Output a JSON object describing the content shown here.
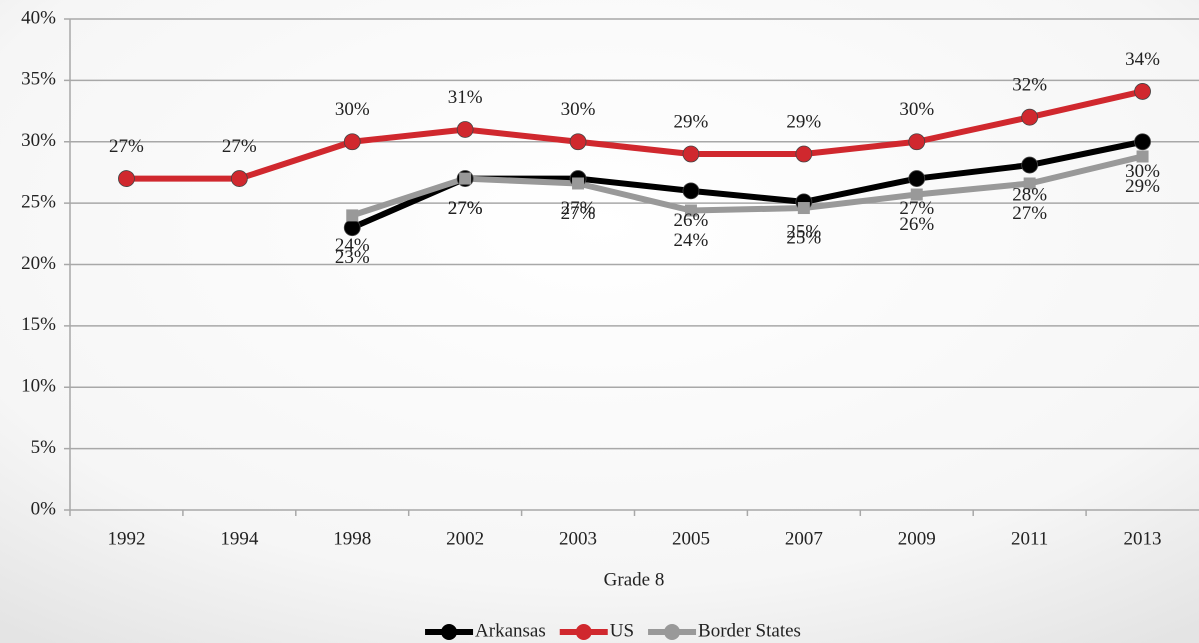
{
  "chart_data": {
    "type": "line",
    "categories": [
      "1992",
      "1994",
      "1998",
      "2002",
      "2003",
      "2005",
      "2007",
      "2009",
      "2011",
      "2013"
    ],
    "xlabel": "Grade 8",
    "ylim": [
      0,
      40
    ],
    "yticks": [
      {
        "value": 0,
        "label": "0%"
      },
      {
        "value": 5,
        "label": "5%"
      },
      {
        "value": 10,
        "label": "10%"
      },
      {
        "value": 15,
        "label": "15%"
      },
      {
        "value": 20,
        "label": "20%"
      },
      {
        "value": 25,
        "label": "25%"
      },
      {
        "value": 30,
        "label": "30%"
      },
      {
        "value": 35,
        "label": "35%"
      },
      {
        "value": 40,
        "label": "40%"
      }
    ],
    "grid": true,
    "legend": "bottom",
    "series": [
      {
        "name": "Arkansas",
        "color": "#000000",
        "marker": "circle",
        "values": [
          null,
          null,
          23,
          27,
          27,
          26,
          25.1,
          27,
          28.1,
          30
        ],
        "value_labels": [
          null,
          null,
          "23%",
          "27%",
          "27%",
          "26%",
          "25%",
          "27%",
          "28%",
          "30%"
        ]
      },
      {
        "name": "US",
        "color": "#d0282e",
        "marker": "circle",
        "values": [
          27,
          27,
          30,
          31,
          30,
          29,
          29,
          30,
          32,
          34.1
        ],
        "value_labels": [
          "27%",
          "27%",
          "30%",
          "31%",
          "30%",
          "29%",
          "29%",
          "30%",
          "32%",
          "34%"
        ]
      },
      {
        "name": "Border States",
        "color": "#999999",
        "marker": "square",
        "values": [
          null,
          null,
          24,
          27,
          26.6,
          24.4,
          24.6,
          25.7,
          26.6,
          28.8
        ],
        "value_labels": [
          null,
          null,
          "24%",
          "27%",
          "27%",
          "24%",
          "25%",
          "26%",
          "27%",
          "29%"
        ]
      }
    ]
  }
}
